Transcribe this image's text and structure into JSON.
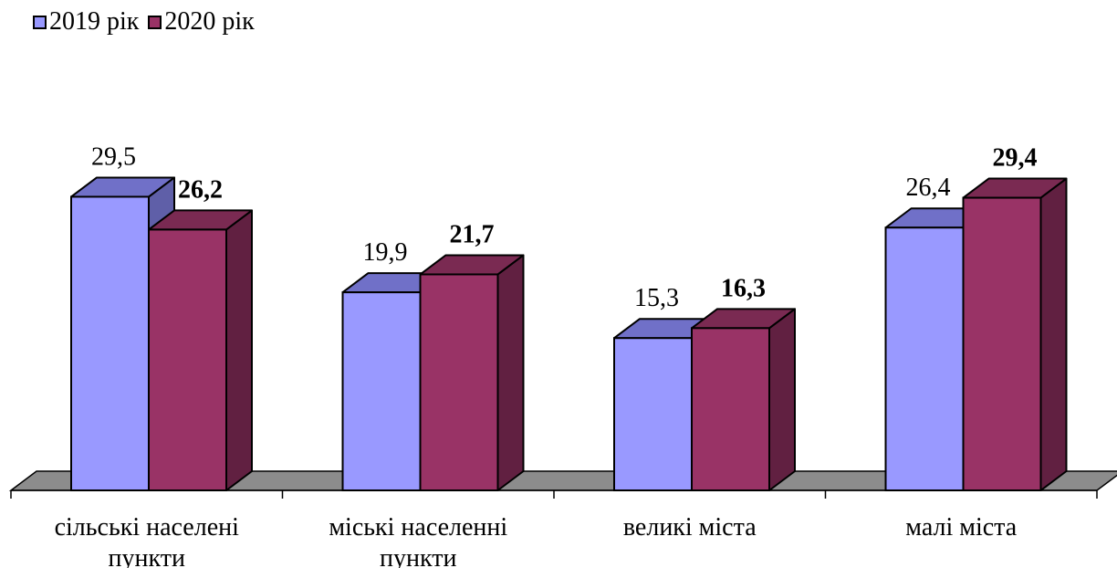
{
  "chart_data": {
    "type": "bar",
    "categories": [
      [
        "сільські населені",
        "пункти"
      ],
      [
        "міські населенні",
        "пункти"
      ],
      [
        "великі міста"
      ],
      [
        "малі міста"
      ]
    ],
    "series": [
      {
        "name": "2019 рік",
        "values": [
          29.5,
          19.9,
          15.3,
          26.4
        ],
        "value_labels": [
          "29,5",
          "19,9",
          "15,3",
          "26,4"
        ],
        "front_color": "#9999ff",
        "top_color": "#7070c8",
        "side_color": "#5f5fa8",
        "label_bold": false
      },
      {
        "name": "2020 рік",
        "values": [
          26.2,
          21.7,
          16.3,
          29.4
        ],
        "value_labels": [
          "26,2",
          "21,7",
          "16,3",
          "29,4"
        ],
        "front_color": "#993366",
        "top_color": "#7a2a52",
        "side_color": "#612041",
        "label_bold": true
      }
    ],
    "floor_color": "#8c8c8c",
    "legend_position": "top-left",
    "grid": false
  }
}
